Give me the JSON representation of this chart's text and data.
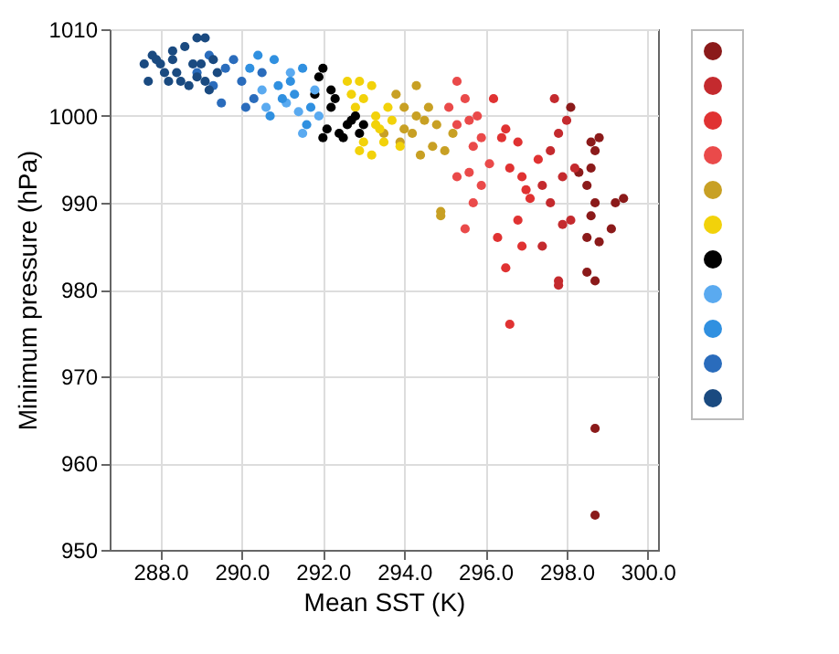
{
  "chart_data": {
    "type": "scatter",
    "xlabel": "Mean SST (K)",
    "ylabel": "Minimum pressure (hPa)",
    "xlim": [
      286.75,
      300.25
    ],
    "ylim": [
      950,
      1010
    ],
    "xticks": [
      {
        "value": 288,
        "label": "288.0"
      },
      {
        "value": 290,
        "label": "290.0"
      },
      {
        "value": 292,
        "label": "292.0"
      },
      {
        "value": 294,
        "label": "294.0"
      },
      {
        "value": 296,
        "label": "296.0"
      },
      {
        "value": 298,
        "label": "298.0"
      },
      {
        "value": 300,
        "label": "300.0"
      }
    ],
    "yticks": [
      950,
      960,
      970,
      980,
      990,
      1000,
      1010
    ],
    "grid": true,
    "marker": "circle",
    "series": [
      {
        "color": "#8b1a1a",
        "x": [
          298.6,
          298.7,
          298.6,
          298.5,
          298.7,
          298.6,
          298.5,
          298.8,
          298.3,
          298.1,
          299.2,
          299.4,
          299.1,
          298.7,
          298.5,
          298.7,
          298.7,
          298.8
        ],
        "values": [
          997,
          996,
          994,
          992,
          990,
          988.5,
          986,
          985.5,
          993.5,
          1001,
          990,
          990.5,
          987,
          981,
          982,
          964,
          954,
          997.5
        ]
      },
      {
        "color": "#c42a2e",
        "x": [
          297.7,
          297.8,
          297.6,
          298.0,
          297.9,
          297.6,
          297.9,
          298.1,
          297.4,
          297.8,
          297.8,
          298.2,
          297.4
        ],
        "values": [
          1002,
          998,
          996,
          999.5,
          993,
          990,
          987.5,
          988,
          985,
          981,
          980.5,
          994,
          992
        ]
      },
      {
        "color": "#e03232",
        "x": [
          296.2,
          296.4,
          296.5,
          296.8,
          296.6,
          296.9,
          297.0,
          296.3,
          296.8,
          297.3,
          297.1,
          296.5,
          296.9,
          296.6
        ],
        "values": [
          1002,
          997.5,
          998.5,
          997,
          994,
          993,
          991.5,
          986,
          988,
          995,
          990.5,
          982.5,
          985,
          976
        ]
      },
      {
        "color": "#ea4a4a",
        "x": [
          295.3,
          295.1,
          295.5,
          295.6,
          295.8,
          295.3,
          295.9,
          295.7,
          295.3,
          295.6,
          295.9,
          296.1,
          295.7,
          295.5
        ],
        "values": [
          1004,
          1001,
          1002,
          999.5,
          1000,
          999,
          997.5,
          996.5,
          993,
          993.5,
          992,
          994.5,
          990,
          987
        ]
      },
      {
        "color": "#c8a024",
        "x": [
          293.8,
          294.3,
          294.0,
          294.3,
          294.5,
          294.2,
          294.0,
          294.6,
          293.9,
          294.8,
          295.2,
          294.4,
          295.0,
          294.9,
          294.9,
          293.5,
          294.7
        ],
        "values": [
          1002.5,
          1003.5,
          1001,
          1000,
          999.5,
          998,
          998.5,
          1001,
          997,
          999,
          998,
          995.5,
          996,
          989,
          988.5,
          998,
          996.5
        ]
      },
      {
        "color": "#f2d20a",
        "x": [
          292.6,
          292.9,
          293.2,
          292.8,
          293.0,
          293.3,
          293.0,
          293.4,
          292.9,
          293.7,
          293.5,
          292.7,
          293.9,
          293.2,
          293.6,
          293.3
        ],
        "values": [
          1004,
          1004,
          1003.5,
          1001,
          1002,
          1000,
          997,
          998.5,
          996,
          999.5,
          997,
          1002.5,
          996.5,
          995.5,
          1001,
          999
        ]
      },
      {
        "color": "#000000",
        "x": [
          291.9,
          292.0,
          292.2,
          292.3,
          292.0,
          292.4,
          292.6,
          292.8,
          292.5,
          292.9,
          292.2,
          292.7,
          292.1,
          291.8,
          293.0
        ],
        "values": [
          1004.5,
          1005.5,
          1003,
          1002,
          997.5,
          998,
          999,
          1000,
          997.5,
          998,
          1001,
          999.5,
          998.5,
          1002.5,
          999
        ]
      },
      {
        "color": "#5aaaf0",
        "x": [
          290.5,
          291.1,
          291.4,
          291.8,
          291.9,
          291.5,
          290.6,
          291.2
        ],
        "values": [
          1003,
          1001.5,
          1000.5,
          1003,
          1000,
          998,
          1001,
          1005
        ]
      },
      {
        "color": "#3090e0",
        "x": [
          290.2,
          290.4,
          290.8,
          291.2,
          291.0,
          290.7,
          291.5,
          291.3,
          291.7,
          290.9,
          291.6
        ],
        "values": [
          1005.5,
          1007,
          1006.5,
          1004,
          1002,
          1000,
          1005.5,
          1002.5,
          1001,
          1003.5,
          999
        ]
      },
      {
        "color": "#2a6cbc",
        "x": [
          288.9,
          289.3,
          289.6,
          290.0,
          289.8,
          289.5,
          290.3,
          290.5,
          289.2,
          290.1
        ],
        "values": [
          1005,
          1003.5,
          1005.5,
          1004,
          1006.5,
          1001.5,
          1002,
          1005,
          1007,
          1001
        ]
      },
      {
        "color": "#1a4a80",
        "x": [
          287.6,
          287.8,
          287.9,
          288.0,
          287.7,
          288.2,
          288.4,
          288.5,
          288.7,
          288.9,
          289.1,
          288.3,
          288.8,
          289.0,
          289.2,
          288.6,
          288.9,
          289.1,
          288.3,
          289.4,
          289.3,
          288.1
        ],
        "values": [
          1006,
          1007,
          1006.5,
          1006,
          1004,
          1004,
          1005,
          1004,
          1003.5,
          1004.5,
          1004,
          1006.5,
          1006,
          1006,
          1003,
          1008,
          1009,
          1009,
          1007.5,
          1005,
          1006.5,
          1005
        ]
      }
    ]
  }
}
